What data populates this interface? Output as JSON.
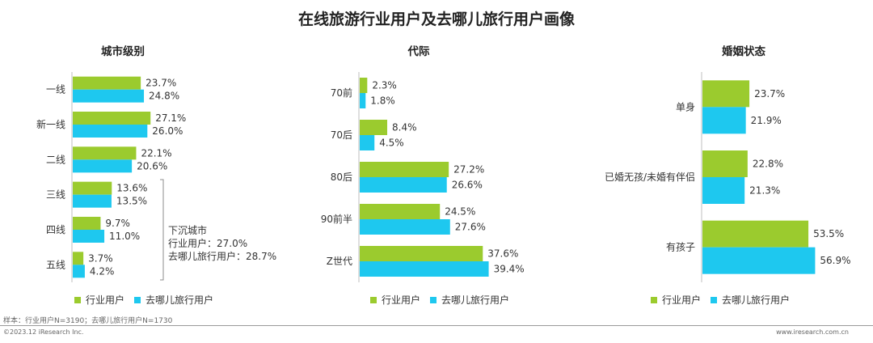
{
  "title": "在线旅游行业用户及去哪儿旅行用户画像",
  "colors": {
    "industry": "#9BCB2E",
    "qunar": "#1EC8EF",
    "axis": "#bfbfbf",
    "bracket": "#8c8c8c"
  },
  "chart_data": [
    {
      "type": "bar",
      "orientation": "horizontal",
      "title": "城市级别",
      "categories": [
        "一线",
        "新一线",
        "二线",
        "三线",
        "四线",
        "五线"
      ],
      "series": [
        {
          "name": "行业用户",
          "values": [
            23.7,
            27.1,
            22.1,
            13.6,
            9.7,
            3.7
          ],
          "labels": [
            "23.7%",
            "27.1%",
            "22.1%",
            "13.6%",
            "9.7%",
            "3.7%"
          ]
        },
        {
          "name": "去哪儿旅行用户",
          "values": [
            24.8,
            26.0,
            20.6,
            13.5,
            11.0,
            4.2
          ],
          "labels": [
            "24.8%",
            "26.0%",
            "20.6%",
            "13.5%",
            "11.0%",
            "4.2%"
          ]
        }
      ],
      "xlim": [
        0,
        100
      ],
      "legend_position": "bottom",
      "annotation": {
        "lines": [
          "下沉城市",
          "行业用户：27.0%",
          "去哪儿旅行用户：28.7%"
        ],
        "applies_to": [
          "三线",
          "四线",
          "五线"
        ]
      }
    },
    {
      "type": "bar",
      "orientation": "horizontal",
      "title": "代际",
      "categories": [
        "70前",
        "70后",
        "80后",
        "90前半",
        "Z世代"
      ],
      "series": [
        {
          "name": "行业用户",
          "values": [
            2.3,
            8.4,
            27.2,
            24.5,
            37.6
          ],
          "labels": [
            "2.3%",
            "8.4%",
            "27.2%",
            "24.5%",
            "37.6%"
          ]
        },
        {
          "name": "去哪儿旅行用户",
          "values": [
            1.8,
            4.5,
            26.6,
            27.6,
            39.4
          ],
          "labels": [
            "1.8%",
            "4.5%",
            "26.6%",
            "27.6%",
            "39.4%"
          ]
        }
      ],
      "xlim": [
        0,
        100
      ],
      "legend_position": "bottom"
    },
    {
      "type": "bar",
      "orientation": "horizontal",
      "title": "婚姻状态",
      "categories": [
        "单身",
        "已婚无孩/未婚有伴侣",
        "有孩子"
      ],
      "series": [
        {
          "name": "行业用户",
          "values": [
            23.7,
            22.8,
            53.5
          ],
          "labels": [
            "23.7%",
            "22.8%",
            "53.5%"
          ]
        },
        {
          "name": "去哪儿旅行用户",
          "values": [
            21.9,
            21.3,
            56.9
          ],
          "labels": [
            "21.9%",
            "21.3%",
            "56.9%"
          ]
        }
      ],
      "xlim": [
        0,
        100
      ],
      "legend_position": "bottom"
    }
  ],
  "footer": {
    "sample": "样本：行业用户N=3190；去哪儿旅行用户N=1730",
    "copyright": "©2023.12 iResearch Inc.",
    "url": "www.iresearch.com.cn"
  }
}
